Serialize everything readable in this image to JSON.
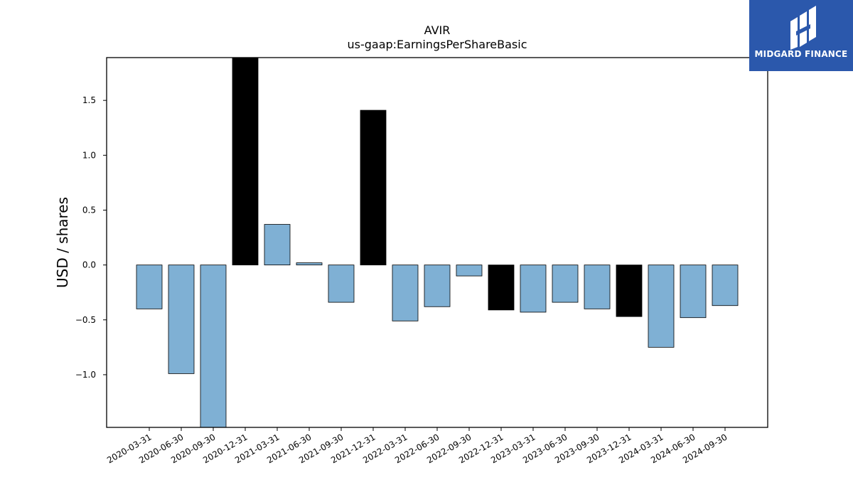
{
  "logo": {
    "text": "MIDGARD FINANCE",
    "background": "#2b58ac"
  },
  "chart_data": {
    "type": "bar",
    "title": "AVIR",
    "subtitle": "us-gaap:EarningsPerShareBasic",
    "xlabel": "",
    "ylabel": "USD / shares",
    "ylim": [
      -1.48,
      1.89
    ],
    "yticks": [
      -1.0,
      -0.5,
      0.0,
      0.5,
      1.0,
      1.5
    ],
    "ytick_labels": [
      "−1.0",
      "−0.5",
      "0.0",
      "0.5",
      "1.0",
      "1.5"
    ],
    "grid": false,
    "categories": [
      "2020-03-31",
      "2020-06-30",
      "2020-09-30",
      "2020-12-31",
      "2021-03-31",
      "2021-06-30",
      "2021-09-30",
      "2021-12-31",
      "2022-03-31",
      "2022-06-30",
      "2022-09-30",
      "2022-12-31",
      "2023-03-31",
      "2023-06-30",
      "2023-09-30",
      "2023-12-31",
      "2024-03-31",
      "2024-06-30",
      "2024-09-30"
    ],
    "values": [
      -0.4,
      -0.99,
      -1.48,
      1.89,
      0.37,
      0.02,
      -0.34,
      1.41,
      -0.51,
      -0.38,
      -0.1,
      -0.41,
      -0.43,
      -0.34,
      -0.4,
      -0.47,
      -0.75,
      -0.48,
      -0.37
    ],
    "highlight": [
      false,
      false,
      false,
      true,
      false,
      false,
      false,
      true,
      false,
      false,
      false,
      true,
      false,
      false,
      false,
      true,
      false,
      false,
      false
    ],
    "colors": {
      "bar": "#7fb0d4",
      "highlight": "#000000",
      "edge": "#000000"
    }
  }
}
